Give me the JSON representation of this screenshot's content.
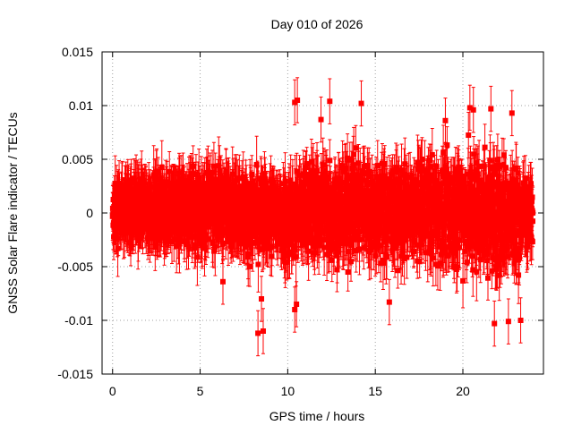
{
  "chart_data": {
    "type": "scatter",
    "title": "Day 010 of 2026",
    "xlabel": "GPS time / hours",
    "ylabel": "GNSS Solar Flare indicator / TECUs",
    "xlim": [
      -0.6,
      24.6
    ],
    "ylim": [
      -0.015,
      0.015
    ],
    "x_ticks": [
      0,
      5,
      10,
      15,
      20
    ],
    "x_tick_labels": [
      "0",
      "5",
      "10",
      "15",
      "20"
    ],
    "y_ticks": [
      -0.015,
      -0.01,
      -0.005,
      0,
      0.005,
      0.01,
      0.015
    ],
    "y_tick_labels": [
      "-0.015",
      "-0.01",
      "-0.005",
      "0",
      "0.005",
      "0.01",
      "0.015"
    ],
    "grid": true,
    "legend": "none",
    "series_color": "#ff0000",
    "marker": "square-with-errorbars",
    "sampling_interval_hours": 0.0083,
    "typical_error": 0.0021,
    "envelope": {
      "x": [
        0,
        1,
        2,
        3,
        4,
        5,
        6,
        7,
        8,
        9,
        10,
        11,
        12,
        13,
        14,
        15,
        16,
        17,
        18,
        19,
        20,
        21,
        22,
        23,
        24
      ],
      "upper": [
        0.0045,
        0.0055,
        0.0052,
        0.0058,
        0.0062,
        0.0068,
        0.0065,
        0.006,
        0.006,
        0.0062,
        0.0065,
        0.0075,
        0.0085,
        0.008,
        0.009,
        0.0075,
        0.0075,
        0.007,
        0.0085,
        0.0085,
        0.0095,
        0.0098,
        0.0095,
        0.0085,
        0.004
      ],
      "lower": [
        -0.004,
        -0.0045,
        -0.0045,
        -0.005,
        -0.0055,
        -0.006,
        -0.005,
        -0.005,
        -0.0065,
        -0.0065,
        -0.0075,
        -0.007,
        -0.007,
        -0.008,
        -0.007,
        -0.0075,
        -0.0075,
        -0.007,
        -0.0075,
        -0.0085,
        -0.0085,
        -0.0095,
        -0.0095,
        -0.0095,
        -0.004
      ]
    },
    "outliers": [
      {
        "x": 8.3,
        "y": -0.0112
      },
      {
        "x": 8.6,
        "y": -0.011
      },
      {
        "x": 8.5,
        "y": -0.008
      },
      {
        "x": 10.4,
        "y": 0.0103
      },
      {
        "x": 10.55,
        "y": 0.0105
      },
      {
        "x": 10.5,
        "y": -0.0085
      },
      {
        "x": 10.4,
        "y": -0.009
      },
      {
        "x": 12.4,
        "y": 0.0104
      },
      {
        "x": 14.2,
        "y": 0.0102
      },
      {
        "x": 11.9,
        "y": 0.0087
      },
      {
        "x": 20.4,
        "y": 0.0098
      },
      {
        "x": 20.6,
        "y": 0.0096
      },
      {
        "x": 21.6,
        "y": 0.0097
      },
      {
        "x": 21.8,
        "y": -0.0103
      },
      {
        "x": 22.6,
        "y": -0.0101
      },
      {
        "x": 23.3,
        "y": -0.01
      },
      {
        "x": 22.8,
        "y": 0.0093
      },
      {
        "x": 15.8,
        "y": -0.0083
      },
      {
        "x": 19.0,
        "y": 0.0086
      },
      {
        "x": 6.3,
        "y": -0.0064
      }
    ]
  }
}
